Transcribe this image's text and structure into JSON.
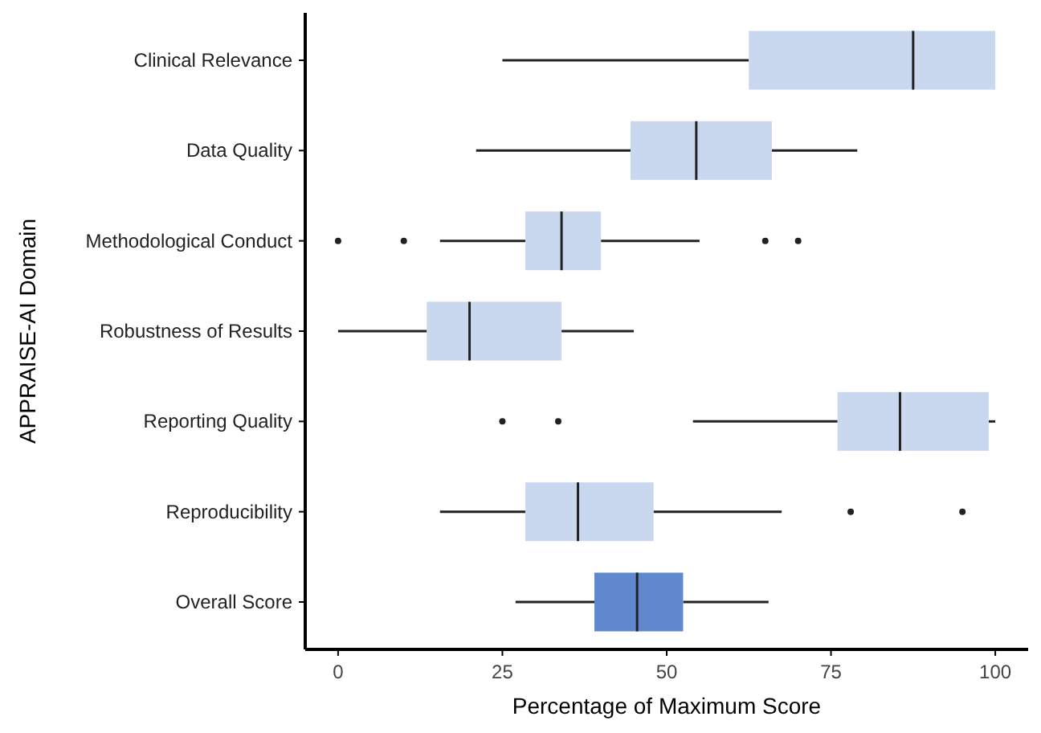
{
  "chart_data": {
    "type": "box",
    "orientation": "horizontal",
    "xlabel": "Percentage of Maximum Score",
    "ylabel": "APPRAISE-AI Domain",
    "categories": [
      "Clinical Relevance",
      "Data Quality",
      "Methodological Conduct",
      "Robustness of Results",
      "Reporting Quality",
      "Reproducibility",
      "Overall Score"
    ],
    "colors": [
      "#c9d7ef",
      "#c9d7ef",
      "#c9d7ef",
      "#c9d7ef",
      "#c9d7ef",
      "#c9d7ef",
      "#6088cf"
    ],
    "boxes": [
      {
        "low": 25,
        "q1": 62.5,
        "median": 87.5,
        "q3": 100,
        "high": 100
      },
      {
        "low": 21,
        "q1": 44.5,
        "median": 54.5,
        "q3": 66,
        "high": 79
      },
      {
        "low": 15.5,
        "q1": 28.5,
        "median": 34,
        "q3": 40,
        "high": 55,
        "outliers": [
          0,
          10,
          65,
          70
        ]
      },
      {
        "low": 0,
        "q1": 13.5,
        "median": 20,
        "q3": 34,
        "high": 45
      },
      {
        "low": 54,
        "q1": 76,
        "median": 85.5,
        "q3": 99,
        "high": 100,
        "outliers": [
          25,
          33.5
        ]
      },
      {
        "low": 15.5,
        "q1": 28.5,
        "median": 36.5,
        "q3": 48,
        "high": 67.5,
        "outliers": [
          78,
          95
        ]
      },
      {
        "low": 27,
        "q1": 39,
        "median": 45.5,
        "q3": 52.5,
        "high": 65.5
      }
    ],
    "xlim": [
      -5,
      105
    ],
    "xticks": [
      0,
      25,
      50,
      75,
      100
    ],
    "grid": false
  }
}
